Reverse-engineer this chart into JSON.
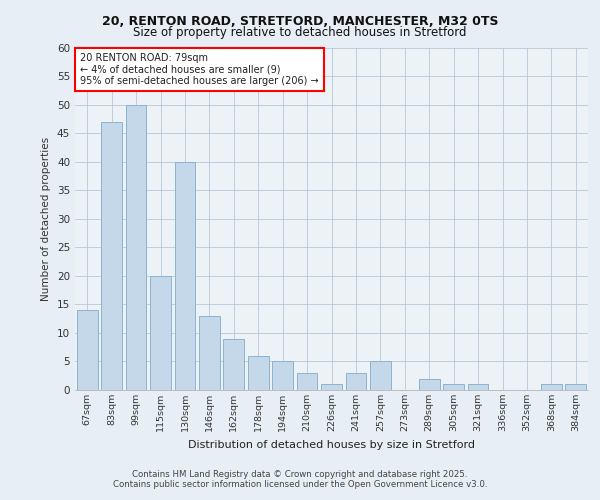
{
  "title_line1": "20, RENTON ROAD, STRETFORD, MANCHESTER, M32 0TS",
  "title_line2": "Size of property relative to detached houses in Stretford",
  "xlabel": "Distribution of detached houses by size in Stretford",
  "ylabel": "Number of detached properties",
  "footer_line1": "Contains HM Land Registry data © Crown copyright and database right 2025.",
  "footer_line2": "Contains public sector information licensed under the Open Government Licence v3.0.",
  "annotation_line1": "20 RENTON ROAD: 79sqm",
  "annotation_line2": "← 4% of detached houses are smaller (9)",
  "annotation_line3": "95% of semi-detached houses are larger (206) →",
  "bar_labels": [
    "67sqm",
    "83sqm",
    "99sqm",
    "115sqm",
    "130sqm",
    "146sqm",
    "162sqm",
    "178sqm",
    "194sqm",
    "210sqm",
    "226sqm",
    "241sqm",
    "257sqm",
    "273sqm",
    "289sqm",
    "305sqm",
    "321sqm",
    "336sqm",
    "352sqm",
    "368sqm",
    "384sqm"
  ],
  "bar_values": [
    14,
    47,
    50,
    20,
    40,
    13,
    9,
    6,
    5,
    3,
    1,
    3,
    5,
    0,
    2,
    1,
    1,
    0,
    0,
    1,
    1
  ],
  "bar_color": "#c5d8ea",
  "bar_edge_color": "#89b4d1",
  "background_color": "#e8eef5",
  "plot_bg_color": "#edf2f7",
  "ylim": [
    0,
    60
  ],
  "yticks": [
    0,
    5,
    10,
    15,
    20,
    25,
    30,
    35,
    40,
    45,
    50,
    55,
    60
  ]
}
